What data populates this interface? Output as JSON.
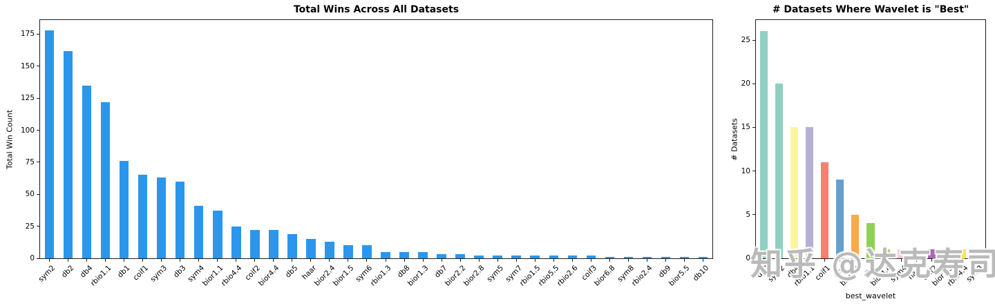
{
  "watermark": {
    "text": "知乎 @达克寿司"
  },
  "chart_data": [
    {
      "type": "bar",
      "title": "Total Wins Across All Datasets",
      "xlabel": "",
      "ylabel": "Total Win Count",
      "categories": [
        "sym2",
        "db2",
        "db4",
        "rbio1.1",
        "db1",
        "coif1",
        "sym3",
        "db3",
        "sym4",
        "bior1.1",
        "rbio4.4",
        "coif2",
        "bior4.4",
        "db5",
        "haar",
        "bior2.4",
        "bior1.5",
        "sym6",
        "rbio1.3",
        "db8",
        "bior1.3",
        "db7",
        "bior2.2",
        "bior2.8",
        "sym5",
        "sym7",
        "rbio1.5",
        "rbio5.5",
        "rbio2.6",
        "coif3",
        "bior6.8",
        "sym8",
        "rbio2.4",
        "db9",
        "bior5.5",
        "db10"
      ],
      "values": [
        178,
        162,
        135,
        122,
        76,
        65,
        63,
        60,
        41,
        37,
        25,
        22,
        22,
        19,
        15,
        13,
        10,
        10,
        5,
        5,
        5,
        3,
        3,
        2,
        2,
        2,
        2,
        2,
        2,
        2,
        1,
        1,
        1,
        1,
        1,
        1
      ],
      "yticks": [
        0,
        25,
        50,
        75,
        100,
        125,
        150,
        175
      ],
      "ylim": [
        0,
        186
      ],
      "bar_color": "#2b96ec",
      "grid": false,
      "legend": "none"
    },
    {
      "type": "bar",
      "title": "# Datasets Where Wavelet is \"Best\"",
      "xlabel": "best_wavelet",
      "ylabel": "# Datasets",
      "categories": [
        "db2",
        "sym2",
        "db4",
        "rbio1.1",
        "coif1",
        "db1",
        "bior1.1",
        "db3",
        "bior4.4",
        "sym4",
        "haar",
        "coif2",
        "bior1.5",
        "rbio4.4",
        "sym3"
      ],
      "values": [
        26,
        20,
        15,
        15,
        11,
        9,
        5,
        4,
        1,
        1,
        1,
        1,
        1,
        1,
        1
      ],
      "yticks": [
        0,
        5,
        10,
        15,
        20,
        25
      ],
      "ylim": [
        0,
        27.3
      ],
      "bar_colors": [
        "#8fd0c3",
        "#8fd0c3",
        "#fbf5a0",
        "#b5afd6",
        "#f97f70",
        "#649fce",
        "#f9a94f",
        "#90d155",
        "#a4d968",
        "#f8c9dd",
        "#d8d8d8",
        "#a96bb0",
        "#bce0a8",
        "#fbe74e",
        "#fbe74e"
      ],
      "grid": false,
      "legend": "none"
    }
  ]
}
